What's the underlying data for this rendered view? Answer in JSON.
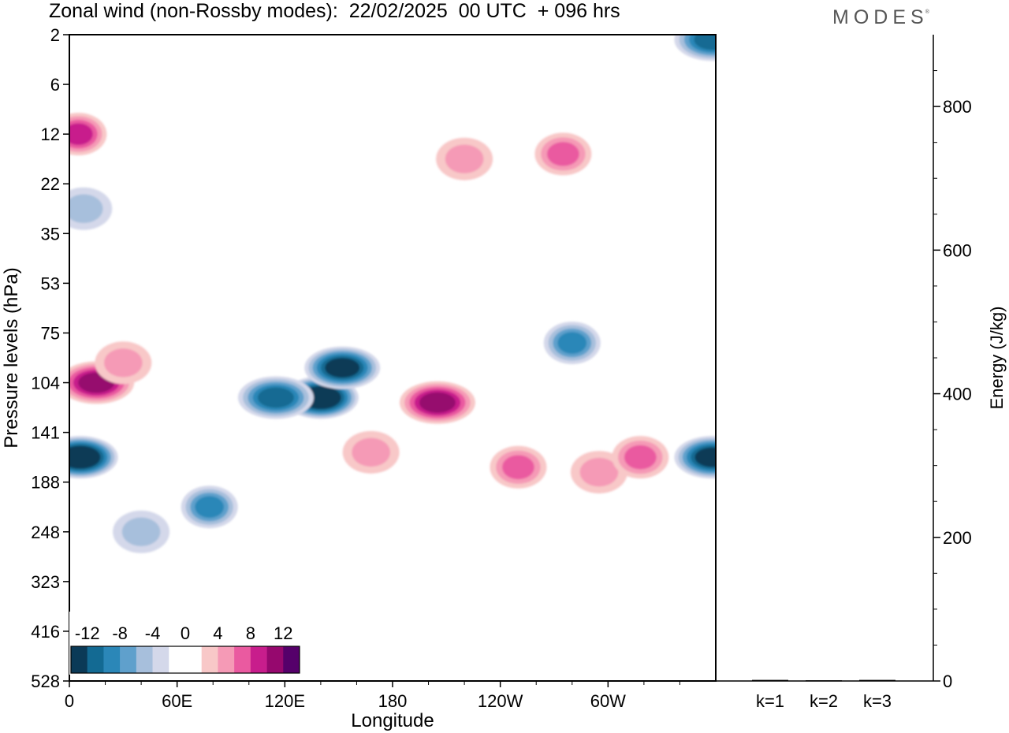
{
  "page": {
    "title": "Zonal wind (non-Rossby modes):  22/02/2025  00 UTC  + 096 hrs",
    "logo": "MODES",
    "logo_mark": "®"
  },
  "chart_data": [
    {
      "type": "heatmap",
      "title": "Zonal wind (non-Rossby modes):  22/02/2025  00 UTC  + 096 hrs",
      "xlabel": "Longitude",
      "ylabel": "Pressure levels (hPa)",
      "x_ticks": [
        "0",
        "60E",
        "120E",
        "180",
        "120W",
        "60W"
      ],
      "x_tick_values": [
        0,
        60,
        120,
        180,
        240,
        300
      ],
      "xlim": [
        0,
        360
      ],
      "y_ticks": [
        "2",
        "6",
        "12",
        "22",
        "35",
        "53",
        "75",
        "104",
        "141",
        "188",
        "248",
        "323",
        "416",
        "528"
      ],
      "y_scale": "vertical levels (pressure decreasing upward)",
      "colorbar": {
        "labels": [
          "-12",
          "-8",
          "-4",
          "0",
          "4",
          "8",
          "12"
        ],
        "levels": [
          -14,
          -12,
          -10,
          -8,
          -6,
          -4,
          -2,
          0,
          2,
          4,
          6,
          8,
          10,
          12,
          14
        ],
        "colors": [
          "#0b3a57",
          "#136a93",
          "#2b87b8",
          "#5fa0cc",
          "#a7bfdc",
          "#d4d8ea",
          "#ffffff",
          "#ffffff",
          "#f8c8c8",
          "#f59ab6",
          "#ea5aa0",
          "#c81d8c",
          "#96086e",
          "#55006a"
        ]
      },
      "features": [
        {
          "lon": 5,
          "lev": 2,
          "value": 9
        },
        {
          "lon": 15,
          "lev": 7,
          "value": 10
        },
        {
          "lon": 30,
          "lev": 6.6,
          "value": 5
        },
        {
          "lon": 6,
          "lev": 8.5,
          "value": -14
        },
        {
          "lon": 8,
          "lev": 3.5,
          "value": -5
        },
        {
          "lon": 40,
          "lev": 10,
          "value": -5
        },
        {
          "lon": 78,
          "lev": 9.5,
          "value": -8
        },
        {
          "lon": 140,
          "lev": 7.3,
          "value": -14
        },
        {
          "lon": 115,
          "lev": 7.3,
          "value": -10
        },
        {
          "lon": 152,
          "lev": 6.7,
          "value": -12
        },
        {
          "lon": 168,
          "lev": 8.4,
          "value": 5
        },
        {
          "lon": 205,
          "lev": 7.4,
          "value": 10
        },
        {
          "lon": 280,
          "lev": 6.2,
          "value": -8
        },
        {
          "lon": 250,
          "lev": 8.7,
          "value": 6
        },
        {
          "lon": 295,
          "lev": 8.8,
          "value": 5
        },
        {
          "lon": 318,
          "lev": 8.5,
          "value": 6
        },
        {
          "lon": 275,
          "lev": 2.4,
          "value": 7
        },
        {
          "lon": 220,
          "lev": 2.5,
          "value": 5
        },
        {
          "lon": 358,
          "lev": 8.5,
          "value": -12
        },
        {
          "lon": 358,
          "lev": 0.1,
          "value": -10
        }
      ]
    },
    {
      "type": "bar",
      "categories": [
        "k=1",
        "k=2",
        "k=3"
      ],
      "values": [
        1.5,
        1.0,
        1.5
      ],
      "ylabel": "Energy (J/kg)",
      "y_ticks": [
        "0",
        "200",
        "400",
        "600",
        "800"
      ],
      "ylim": [
        0,
        900
      ]
    }
  ]
}
